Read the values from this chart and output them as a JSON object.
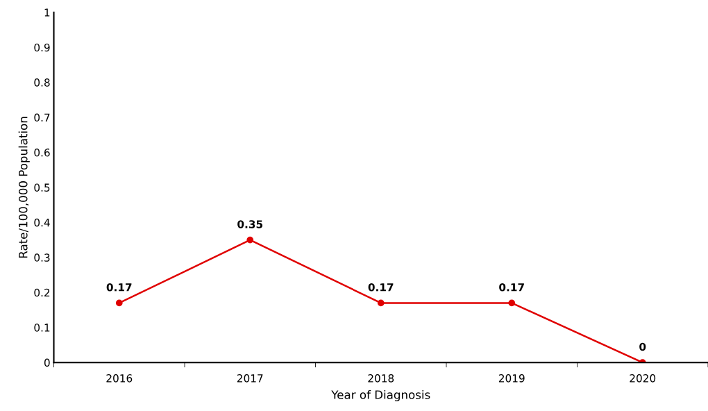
{
  "chart_data": {
    "type": "line",
    "xlabel": "Year of Diagnosis",
    "ylabel": "Rate/100,000 Population",
    "categories": [
      "2016",
      "2017",
      "2018",
      "2019",
      "2020"
    ],
    "series": [
      {
        "color": "#e00000",
        "values": [
          0.17,
          0.35,
          0.17,
          0.17,
          0
        ]
      }
    ],
    "ylim": [
      0,
      1
    ],
    "yticks": [
      0,
      0.1,
      0.2,
      0.3,
      0.4,
      0.5,
      0.6,
      0.7,
      0.8,
      0.9,
      1
    ],
    "data_labels": true,
    "marker": "circle",
    "line_style": "solid",
    "grid": false,
    "legend": false
  }
}
